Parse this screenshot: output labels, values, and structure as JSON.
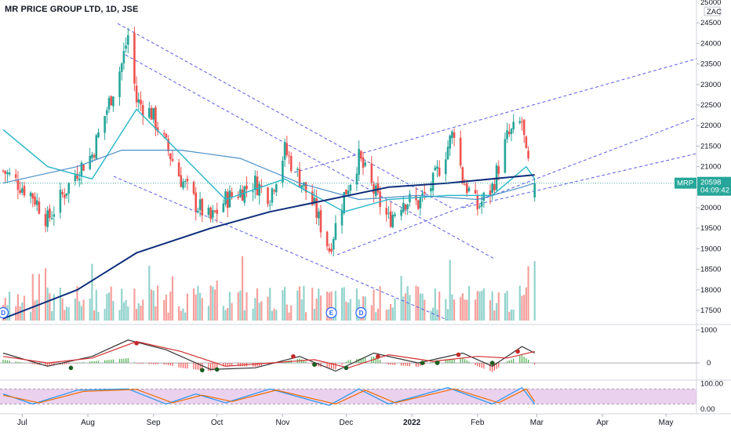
{
  "header": {
    "title": "MR PRICE GROUP LTD, 1D, JSE"
  },
  "price_axis": {
    "currency": "ZAC",
    "ticks": [
      "25000",
      "24500",
      "24000",
      "23500",
      "23000",
      "22500",
      "22000",
      "21500",
      "21000",
      "20500",
      "20000",
      "19500",
      "19000",
      "18500",
      "18000",
      "17500"
    ]
  },
  "last_price": {
    "symbol": "MRP",
    "value": "20598",
    "countdown": "04:09:42"
  },
  "macd_axis": {
    "ticks": [
      "1000",
      "0"
    ]
  },
  "stoch_axis": {
    "ticks": [
      "100.00",
      "0.00"
    ]
  },
  "time_axis": {
    "labels": [
      "Jul",
      "Aug",
      "Sep",
      "Oct",
      "Nov",
      "Dec",
      "2022",
      "Feb",
      "Mar",
      "Apr",
      "May"
    ]
  },
  "events": [
    {
      "label": "D",
      "date": "2021-06-22"
    },
    {
      "label": "E",
      "date": "2021-11-24"
    },
    {
      "label": "D",
      "date": "2021-12-08"
    }
  ],
  "colors": {
    "up": "#26a69a",
    "down": "#ef5350",
    "ma_fast": "#26b6c8",
    "ma_mid": "#4a90c8",
    "ma_slow": "#0d2e7a",
    "channel": "#5a5ae6",
    "macd": "#333333",
    "signal": "#d32f2f",
    "stoch_k": "#2196f3",
    "stoch_d": "#ef6c00",
    "stoch_band": "#e1bee7"
  },
  "chart_data": [
    {
      "type": "candlestick",
      "series_name": "MRP",
      "granularity": "1D",
      "ylim": [
        17300,
        25000
      ],
      "xlim": [
        "2021-06-22",
        "2022-05-16"
      ],
      "x_axis_months": [
        "Jul",
        "Aug",
        "Sep",
        "Oct",
        "Nov",
        "Dec",
        "2022",
        "Feb",
        "Mar",
        "Apr",
        "May"
      ],
      "keypoints": [
        {
          "date": "2021-06-22",
          "close": 20900
        },
        {
          "date": "2021-06-29",
          "close": 20600
        },
        {
          "date": "2021-07-06",
          "close": 20300
        },
        {
          "date": "2021-07-13",
          "close": 19700
        },
        {
          "date": "2021-07-20",
          "close": 20300
        },
        {
          "date": "2021-07-27",
          "close": 20900
        },
        {
          "date": "2021-08-03",
          "close": 21300
        },
        {
          "date": "2021-08-10",
          "close": 22400
        },
        {
          "date": "2021-08-17",
          "close": 23500
        },
        {
          "date": "2021-08-20",
          "close": 24200
        },
        {
          "date": "2021-08-24",
          "close": 22600
        },
        {
          "date": "2021-08-31",
          "close": 22300
        },
        {
          "date": "2021-09-07",
          "close": 21500
        },
        {
          "date": "2021-09-14",
          "close": 20700
        },
        {
          "date": "2021-09-21",
          "close": 20100
        },
        {
          "date": "2021-09-28",
          "close": 19700
        },
        {
          "date": "2021-10-05",
          "close": 20200
        },
        {
          "date": "2021-10-12",
          "close": 20400
        },
        {
          "date": "2021-10-19",
          "close": 20600
        },
        {
          "date": "2021-10-26",
          "close": 20300
        },
        {
          "date": "2021-11-02",
          "close": 21400
        },
        {
          "date": "2021-11-09",
          "close": 20700
        },
        {
          "date": "2021-11-16",
          "close": 20000
        },
        {
          "date": "2021-11-23",
          "close": 19000
        },
        {
          "date": "2021-11-30",
          "close": 20300
        },
        {
          "date": "2021-12-07",
          "close": 21200
        },
        {
          "date": "2021-12-14",
          "close": 20400
        },
        {
          "date": "2021-12-21",
          "close": 19700
        },
        {
          "date": "2021-12-28",
          "close": 20200
        },
        {
          "date": "2022-01-04",
          "close": 20100
        },
        {
          "date": "2022-01-11",
          "close": 20600
        },
        {
          "date": "2022-01-18",
          "close": 21500
        },
        {
          "date": "2022-01-21",
          "close": 21900
        },
        {
          "date": "2022-01-25",
          "close": 20700
        },
        {
          "date": "2022-02-01",
          "close": 20000
        },
        {
          "date": "2022-02-08",
          "close": 20500
        },
        {
          "date": "2022-02-15",
          "close": 21700
        },
        {
          "date": "2022-02-22",
          "close": 22100
        },
        {
          "date": "2022-02-24",
          "close": 21200
        },
        {
          "date": "2022-02-28",
          "close": 20598
        }
      ],
      "moving_averages": [
        {
          "name": "MA fast",
          "points": [
            [
              "2021-06-22",
              21900
            ],
            [
              "2021-07-13",
              21000
            ],
            [
              "2021-08-03",
              20700
            ],
            [
              "2021-08-24",
              22400
            ],
            [
              "2021-09-14",
              21300
            ],
            [
              "2021-10-05",
              20200
            ],
            [
              "2021-11-02",
              20700
            ],
            [
              "2021-11-30",
              19900
            ],
            [
              "2021-12-21",
              20200
            ],
            [
              "2022-01-18",
              20300
            ],
            [
              "2022-02-08",
              20300
            ],
            [
              "2022-02-24",
              21000
            ],
            [
              "2022-02-28",
              20700
            ]
          ]
        },
        {
          "name": "MA mid",
          "points": [
            [
              "2021-06-22",
              20600
            ],
            [
              "2021-07-27",
              21000
            ],
            [
              "2021-08-17",
              21400
            ],
            [
              "2021-09-14",
              21400
            ],
            [
              "2021-10-12",
              21200
            ],
            [
              "2021-11-09",
              20600
            ],
            [
              "2021-12-07",
              20200
            ],
            [
              "2022-01-04",
              20300
            ],
            [
              "2022-02-01",
              20200
            ],
            [
              "2022-02-22",
              20500
            ],
            [
              "2022-02-28",
              20600
            ]
          ]
        },
        {
          "name": "MA slow",
          "points": [
            [
              "2021-06-22",
              17300
            ],
            [
              "2021-07-27",
              18000
            ],
            [
              "2021-08-24",
              18900
            ],
            [
              "2021-09-28",
              19500
            ],
            [
              "2021-10-26",
              19900
            ],
            [
              "2021-11-23",
              20200
            ],
            [
              "2021-12-21",
              20500
            ],
            [
              "2022-01-18",
              20600
            ],
            [
              "2022-02-28",
              20800
            ]
          ]
        }
      ],
      "volume_note": "Volume histogram drawn along bottom of price pane"
    },
    {
      "type": "line",
      "indicator": "MACD",
      "ylim": [
        -500,
        1100
      ],
      "ticks": [
        1000,
        0
      ],
      "series": [
        {
          "name": "MACD",
          "points": [
            [
              "2021-06-22",
              300
            ],
            [
              "2021-07-13",
              -100
            ],
            [
              "2021-08-03",
              200
            ],
            [
              "2021-08-20",
              700
            ],
            [
              "2021-09-07",
              400
            ],
            [
              "2021-09-28",
              -200
            ],
            [
              "2021-10-19",
              -150
            ],
            [
              "2021-11-09",
              200
            ],
            [
              "2021-11-26",
              -250
            ],
            [
              "2021-12-14",
              300
            ],
            [
              "2022-01-04",
              0
            ],
            [
              "2022-01-25",
              300
            ],
            [
              "2022-02-08",
              -100
            ],
            [
              "2022-02-22",
              500
            ],
            [
              "2022-02-28",
              300
            ]
          ]
        },
        {
          "name": "Signal",
          "points": [
            [
              "2021-06-22",
              200
            ],
            [
              "2021-07-13",
              0
            ],
            [
              "2021-08-03",
              150
            ],
            [
              "2021-08-24",
              650
            ],
            [
              "2021-09-14",
              350
            ],
            [
              "2021-10-05",
              -100
            ],
            [
              "2021-10-26",
              0
            ],
            [
              "2021-11-16",
              100
            ],
            [
              "2021-12-02",
              -150
            ],
            [
              "2021-12-21",
              250
            ],
            [
              "2022-01-11",
              50
            ],
            [
              "2022-02-01",
              200
            ],
            [
              "2022-02-15",
              150
            ],
            [
              "2022-02-28",
              350
            ]
          ]
        }
      ]
    },
    {
      "type": "line",
      "indicator": "Stochastic",
      "ylim": [
        0,
        100
      ],
      "band": [
        20,
        80
      ],
      "ticks": [
        100,
        0
      ],
      "series": [
        {
          "name": "%K",
          "points": [
            [
              "2021-06-22",
              60
            ],
            [
              "2021-07-06",
              20
            ],
            [
              "2021-07-27",
              75
            ],
            [
              "2021-08-20",
              80
            ],
            [
              "2021-09-07",
              20
            ],
            [
              "2021-09-21",
              60
            ],
            [
              "2021-10-05",
              25
            ],
            [
              "2021-10-26",
              80
            ],
            [
              "2021-11-23",
              15
            ],
            [
              "2021-12-07",
              80
            ],
            [
              "2021-12-21",
              20
            ],
            [
              "2022-01-18",
              85
            ],
            [
              "2022-02-08",
              20
            ],
            [
              "2022-02-22",
              85
            ],
            [
              "2022-02-28",
              20
            ]
          ]
        },
        {
          "name": "%D",
          "points": [
            [
              "2021-06-22",
              55
            ],
            [
              "2021-07-09",
              25
            ],
            [
              "2021-07-30",
              70
            ],
            [
              "2021-08-24",
              78
            ],
            [
              "2021-09-10",
              25
            ],
            [
              "2021-09-24",
              55
            ],
            [
              "2021-10-08",
              30
            ],
            [
              "2021-10-29",
              75
            ],
            [
              "2021-11-26",
              20
            ],
            [
              "2021-12-10",
              75
            ],
            [
              "2021-12-24",
              25
            ],
            [
              "2022-01-21",
              80
            ],
            [
              "2022-02-11",
              25
            ],
            [
              "2022-02-24",
              80
            ],
            [
              "2022-02-28",
              30
            ]
          ]
        }
      ]
    }
  ]
}
